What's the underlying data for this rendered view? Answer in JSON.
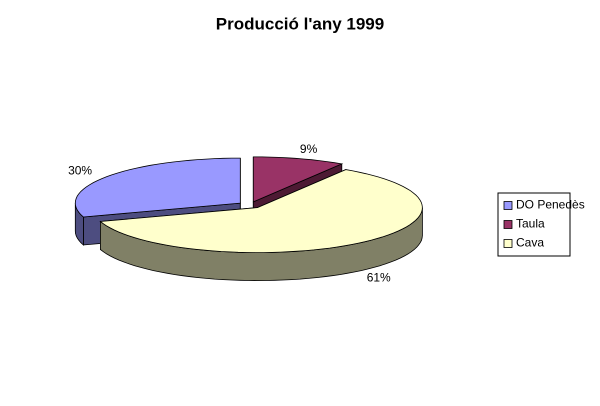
{
  "chart_data": {
    "type": "pie3d",
    "title": "Producció l'any 1999",
    "categories": [
      "DO Penedès",
      "Taula",
      "Cava"
    ],
    "values": [
      30,
      9,
      61
    ],
    "value_labels": [
      "30%",
      "9%",
      "61%"
    ],
    "colors": [
      "#9999ff",
      "#993366",
      "#ffffcc"
    ],
    "legend": "right"
  }
}
